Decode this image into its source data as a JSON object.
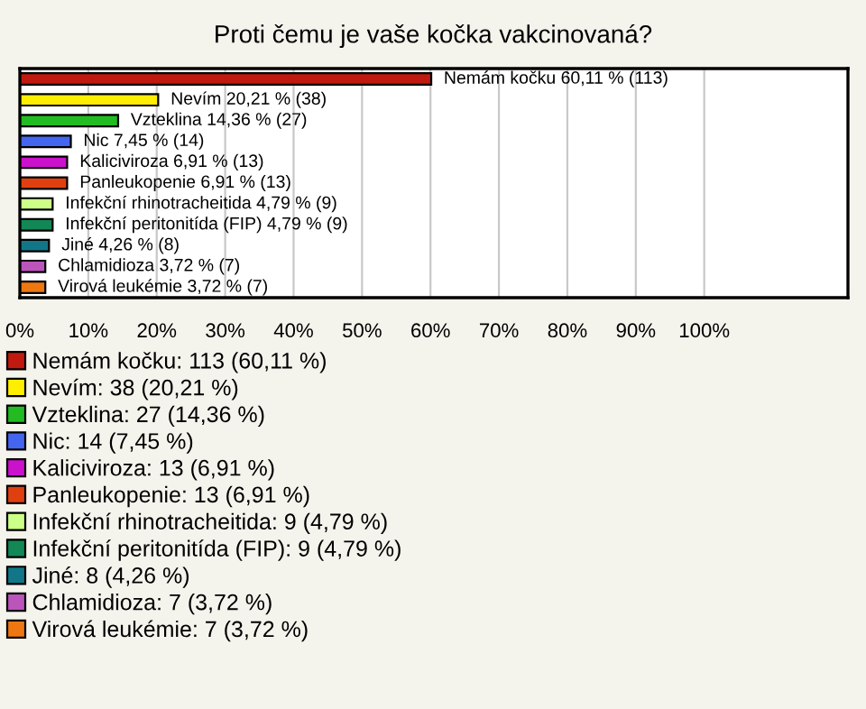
{
  "chart_data": {
    "type": "bar",
    "orientation": "horizontal",
    "title": "Proti čemu je vaše kočka vakcinovaná?",
    "categories": [
      null,
      null,
      null,
      null,
      null,
      null,
      null,
      null,
      null,
      null,
      null
    ],
    "series": [
      {
        "name": "Nemám kočku: 113 (60,11 %)",
        "color": "#c01a10",
        "values": [
          60.11,
          null,
          null,
          null,
          null,
          null,
          null,
          null,
          null,
          null,
          null
        ],
        "value_labels": [
          "Nemám kočku 60,11 % (113)",
          null,
          null,
          null,
          null,
          null,
          null,
          null,
          null,
          null,
          null
        ]
      },
      {
        "name": "Nevím: 38 (20,21 %)",
        "color": "#ffee00",
        "values": [
          null,
          20.21,
          null,
          null,
          null,
          null,
          null,
          null,
          null,
          null,
          null
        ],
        "value_labels": [
          null,
          "Nevím 20,21 % (38)",
          null,
          null,
          null,
          null,
          null,
          null,
          null,
          null,
          null
        ]
      },
      {
        "name": "Vzteklina: 27 (14,36 %)",
        "color": "#22bb22",
        "values": [
          null,
          null,
          14.36,
          null,
          null,
          null,
          null,
          null,
          null,
          null,
          null
        ],
        "value_labels": [
          null,
          null,
          "Vzteklina 14,36 % (27)",
          null,
          null,
          null,
          null,
          null,
          null,
          null,
          null
        ]
      },
      {
        "name": "Nic: 14 (7,45 %)",
        "color": "#4466ee",
        "values": [
          null,
          null,
          null,
          7.45,
          null,
          null,
          null,
          null,
          null,
          null,
          null
        ],
        "value_labels": [
          null,
          null,
          null,
          "Nic 7,45 % (14)",
          null,
          null,
          null,
          null,
          null,
          null,
          null
        ]
      },
      {
        "name": "Kaliciviroza: 13 (6,91 %)",
        "color": "#cc11cc",
        "values": [
          null,
          null,
          null,
          null,
          6.91,
          null,
          null,
          null,
          null,
          null,
          null
        ],
        "value_labels": [
          null,
          null,
          null,
          null,
          "Kaliciviroza 6,91 % (13)",
          null,
          null,
          null,
          null,
          null,
          null
        ]
      },
      {
        "name": "Panleukopenie: 13 (6,91 %)",
        "color": "#e04010",
        "values": [
          null,
          null,
          null,
          null,
          null,
          6.91,
          null,
          null,
          null,
          null,
          null
        ],
        "value_labels": [
          null,
          null,
          null,
          null,
          null,
          "Panleukopenie 6,91 % (13)",
          null,
          null,
          null,
          null,
          null
        ]
      },
      {
        "name": "Infekční rhinotracheitida: 9 (4,79 %)",
        "color": "#ccff88",
        "values": [
          null,
          null,
          null,
          null,
          null,
          null,
          4.79,
          null,
          null,
          null,
          null
        ],
        "value_labels": [
          null,
          null,
          null,
          null,
          null,
          null,
          "Infekční rhinotracheitida 4,79 % (9)",
          null,
          null,
          null,
          null
        ]
      },
      {
        "name": "Infekční peritonitída (FIP): 9 (4,79 %)",
        "color": "#118855",
        "values": [
          null,
          null,
          null,
          null,
          null,
          null,
          null,
          4.79,
          null,
          null,
          null
        ],
        "value_labels": [
          null,
          null,
          null,
          null,
          null,
          null,
          null,
          "Infekční peritonitída (FIP) 4,79 % (9)",
          null,
          null,
          null
        ]
      },
      {
        "name": "Jiné: 8 (4,26 %)",
        "color": "#117788",
        "values": [
          null,
          null,
          null,
          null,
          null,
          null,
          null,
          null,
          4.26,
          null,
          null
        ],
        "value_labels": [
          null,
          null,
          null,
          null,
          null,
          null,
          null,
          null,
          "Jiné 4,26 % (8)",
          null,
          null
        ]
      },
      {
        "name": "Chlamidioza: 7 (3,72 %)",
        "color": "#bb55bb",
        "values": [
          null,
          null,
          null,
          null,
          null,
          null,
          null,
          null,
          null,
          3.72,
          null
        ],
        "value_labels": [
          null,
          null,
          null,
          null,
          null,
          null,
          null,
          null,
          null,
          "Chlamidioza 3,72 % (7)",
          null
        ]
      },
      {
        "name": "Virová leukémie: 7 (3,72 %)",
        "color": "#ee7711",
        "values": [
          null,
          null,
          null,
          null,
          null,
          null,
          null,
          null,
          null,
          null,
          3.72
        ],
        "value_labels": [
          null,
          null,
          null,
          null,
          null,
          null,
          null,
          null,
          null,
          null,
          "Virová leukémie 3,72 % (7)"
        ]
      }
    ],
    "xlim": [
      0,
      121
    ],
    "xticks": [
      {
        "value": 0,
        "label": "0%"
      },
      {
        "value": 10,
        "label": "10%"
      },
      {
        "value": 20,
        "label": "20%"
      },
      {
        "value": 30,
        "label": "30%"
      },
      {
        "value": 40,
        "label": "40%"
      },
      {
        "value": 50,
        "label": "50%"
      },
      {
        "value": 60,
        "label": "60%"
      },
      {
        "value": 70,
        "label": "70%"
      },
      {
        "value": 80,
        "label": "80%"
      },
      {
        "value": 90,
        "label": "90%"
      },
      {
        "value": 100,
        "label": "100%"
      }
    ],
    "grid": "x",
    "legend": "bottom"
  }
}
